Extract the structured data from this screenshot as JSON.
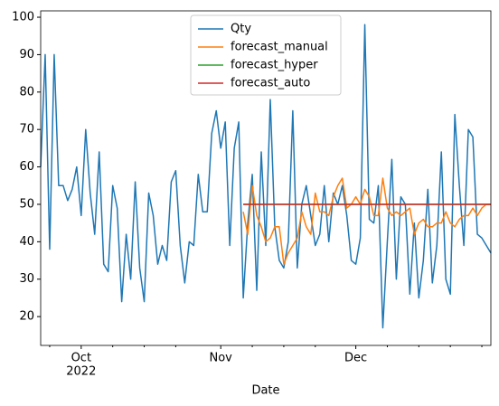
{
  "chart_data": {
    "type": "line",
    "xlabel": "Date",
    "year_label": "2022",
    "x": [
      0,
      1,
      2,
      3,
      4,
      5,
      6,
      7,
      8,
      9,
      10,
      11,
      12,
      13,
      14,
      15,
      16,
      17,
      18,
      19,
      20,
      21,
      22,
      23,
      24,
      25,
      26,
      27,
      28,
      29,
      30,
      31,
      32,
      33,
      34,
      35,
      36,
      37,
      38,
      39,
      40,
      41,
      42,
      43,
      44,
      45,
      46,
      47,
      48,
      49,
      50,
      51,
      52,
      53,
      54,
      55,
      56,
      57,
      58,
      59,
      60,
      61,
      62,
      63,
      64,
      65,
      66,
      67,
      68,
      69,
      70,
      71,
      72,
      73,
      74,
      75,
      76,
      77,
      78,
      79,
      80,
      81,
      82,
      83,
      84,
      85,
      86,
      87,
      88,
      89,
      90,
      91,
      92,
      93,
      94,
      95,
      96,
      97,
      98,
      99,
      100
    ],
    "xlim": [
      0,
      100
    ],
    "xticks": [
      {
        "value": 9,
        "label": "Oct"
      },
      {
        "value": 40,
        "label": "Nov"
      },
      {
        "value": 70,
        "label": "Dec"
      }
    ],
    "xminorticks": [
      2,
      16,
      23,
      30,
      47,
      54,
      61,
      77,
      84,
      91,
      98
    ],
    "ylim": [
      12.3,
      101.7
    ],
    "yticks": [
      20,
      30,
      40,
      50,
      60,
      70,
      80,
      90,
      100
    ],
    "legend": "upper center",
    "series": [
      {
        "name": "Qty",
        "color": "#1f77b4",
        "values": [
          60,
          90,
          38,
          90,
          55,
          55,
          51,
          54,
          60,
          47,
          70,
          53,
          42,
          64,
          34,
          32,
          55,
          49,
          24,
          42,
          30,
          56,
          33,
          24,
          53,
          47,
          34,
          39,
          35,
          56,
          59,
          39,
          29,
          40,
          39,
          58,
          48,
          48,
          69,
          75,
          65,
          72,
          39,
          65,
          72,
          25,
          45,
          58,
          27,
          64,
          39,
          78,
          44,
          35,
          33,
          40,
          75,
          33,
          50,
          55,
          47,
          39,
          42,
          55,
          40,
          53,
          50,
          55,
          47,
          35,
          34,
          41,
          98,
          46,
          45,
          55,
          17,
          40,
          62,
          30,
          52,
          50,
          26,
          45,
          25,
          35,
          54,
          29,
          39,
          64,
          30,
          26,
          74,
          55,
          39,
          70,
          68,
          42,
          41,
          39,
          37
        ]
      },
      {
        "name": "forecast_manual",
        "color": "#ff7f0e",
        "values": [
          null,
          null,
          null,
          null,
          null,
          null,
          null,
          null,
          null,
          null,
          null,
          null,
          null,
          null,
          null,
          null,
          null,
          null,
          null,
          null,
          null,
          null,
          null,
          null,
          null,
          null,
          null,
          null,
          null,
          null,
          null,
          null,
          null,
          null,
          null,
          null,
          null,
          null,
          null,
          null,
          null,
          null,
          null,
          null,
          null,
          48,
          42,
          55,
          47,
          44,
          40,
          41,
          44,
          44,
          34,
          37,
          39,
          41,
          48,
          44,
          42,
          53,
          48,
          48,
          47,
          52,
          55,
          57,
          49,
          50,
          52,
          50,
          54,
          52,
          47,
          47,
          57,
          49,
          47,
          48,
          47,
          48,
          49,
          42,
          45,
          46,
          44,
          44,
          45,
          45,
          48,
          45,
          44,
          46,
          47,
          47,
          49,
          47,
          49,
          50,
          50
        ]
      },
      {
        "name": "forecast_hyper",
        "color": "#2ca02c",
        "values": [
          null,
          null,
          null,
          null,
          null,
          null,
          null,
          null,
          null,
          null,
          null,
          null,
          null,
          null,
          null,
          null,
          null,
          null,
          null,
          null,
          null,
          null,
          null,
          null,
          null,
          null,
          null,
          null,
          null,
          null,
          null,
          null,
          null,
          null,
          null,
          null,
          null,
          null,
          null,
          null,
          null,
          null,
          null,
          null,
          null,
          50,
          50,
          50,
          50,
          50,
          50,
          50,
          50,
          50,
          50,
          50,
          50,
          50,
          50,
          50,
          50,
          50,
          50,
          50,
          50,
          50,
          50,
          50,
          50,
          50,
          50,
          50,
          50,
          50,
          50,
          50,
          50,
          50,
          50,
          50,
          50,
          50,
          50,
          50,
          50,
          50,
          50,
          50,
          50,
          50,
          50,
          50,
          50,
          50,
          50,
          50,
          50,
          50,
          50,
          50,
          50
        ]
      },
      {
        "name": "forecast_auto",
        "color": "#d62728",
        "values": [
          null,
          null,
          null,
          null,
          null,
          null,
          null,
          null,
          null,
          null,
          null,
          null,
          null,
          null,
          null,
          null,
          null,
          null,
          null,
          null,
          null,
          null,
          null,
          null,
          null,
          null,
          null,
          null,
          null,
          null,
          null,
          null,
          null,
          null,
          null,
          null,
          null,
          null,
          null,
          null,
          null,
          null,
          null,
          null,
          null,
          50,
          50,
          50,
          50,
          50,
          50,
          50,
          50,
          50,
          50,
          50,
          50,
          50,
          50,
          50,
          50,
          50,
          50,
          50,
          50,
          50,
          50,
          50,
          50,
          50,
          50,
          50,
          50,
          50,
          50,
          50,
          50,
          50,
          50,
          50,
          50,
          50,
          50,
          50,
          50,
          50,
          50,
          50,
          50,
          50,
          50,
          50,
          50,
          50,
          50,
          50,
          50,
          50,
          50,
          50,
          50
        ]
      }
    ]
  }
}
